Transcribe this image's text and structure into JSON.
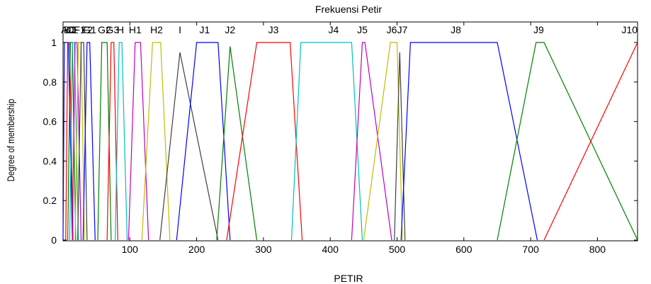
{
  "chart_data": {
    "type": "line",
    "title": "Frekuensi Petir",
    "xlabel": "PETIR",
    "ylabel": "Degree of membership",
    "xlim": [
      0,
      860
    ],
    "ylim": [
      0,
      1
    ],
    "xticks": [
      100,
      200,
      300,
      400,
      500,
      600,
      700,
      800
    ],
    "xtick_labels": [
      "100",
      "200",
      "300",
      "400",
      "500",
      "600",
      "700",
      "800"
    ],
    "yticks": [
      0,
      0.2,
      0.4,
      0.6,
      0.8,
      1
    ],
    "ytick_labels": [
      "0",
      "0.2",
      "0.4",
      "0.6",
      "0.8",
      "1"
    ],
    "grid": false,
    "series": [
      {
        "name": "A",
        "color": "#0000ff",
        "x": [
          0,
          2,
          8,
          14
        ],
        "y": [
          0,
          1,
          1,
          0
        ]
      },
      {
        "name": "B",
        "color": "#ff0000",
        "x": [
          4,
          7,
          10,
          15
        ],
        "y": [
          0,
          1,
          1,
          0
        ]
      },
      {
        "name": "C",
        "color": "#008000",
        "x": [
          7,
          11,
          14,
          19
        ],
        "y": [
          0,
          1,
          1,
          0
        ]
      },
      {
        "name": "D",
        "color": "#00bfbf",
        "x": [
          10,
          14,
          17,
          23
        ],
        "y": [
          0,
          1,
          1,
          0
        ]
      },
      {
        "name": "E",
        "color": "#bf00bf",
        "x": [
          14,
          18,
          21,
          27
        ],
        "y": [
          0,
          1,
          1,
          0
        ]
      },
      {
        "name": "F1",
        "color": "#bfbf00",
        "x": [
          18,
          23,
          27,
          32
        ],
        "y": [
          0,
          1,
          1,
          0
        ]
      },
      {
        "name": "F2",
        "color": "#404040",
        "x": [
          22,
          27,
          31,
          36
        ],
        "y": [
          0,
          1,
          1,
          0
        ]
      },
      {
        "name": "G1",
        "color": "#0000ff",
        "x": [
          30,
          36,
          40,
          48
        ],
        "y": [
          0,
          1,
          1,
          0
        ]
      },
      {
        "name": "G2",
        "color": "#008000",
        "x": [
          52,
          58,
          66,
          72
        ],
        "y": [
          0,
          1,
          1,
          0
        ]
      },
      {
        "name": "G3",
        "color": "#ff0000",
        "x": [
          66,
          72,
          76,
          82
        ],
        "y": [
          0,
          1,
          1,
          0
        ]
      },
      {
        "name": "H",
        "color": "#00bfbf",
        "x": [
          78,
          84,
          88,
          96
        ],
        "y": [
          0,
          1,
          1,
          0
        ]
      },
      {
        "name": "H1",
        "color": "#bf00bf",
        "x": [
          98,
          108,
          116,
          128
        ],
        "y": [
          0,
          1,
          1,
          0
        ]
      },
      {
        "name": "H2",
        "color": "#bfbf00",
        "x": [
          118,
          134,
          146,
          160
        ],
        "y": [
          0,
          1,
          1,
          0
        ]
      },
      {
        "name": "I",
        "color": "#404040",
        "x": [
          145,
          175,
          232
        ],
        "y": [
          0,
          0.95,
          0
        ]
      },
      {
        "name": "J1",
        "color": "#0000ff",
        "x": [
          170,
          200,
          232,
          250
        ],
        "y": [
          0,
          1,
          1,
          0
        ]
      },
      {
        "name": "J2",
        "color": "#008000",
        "x": [
          230,
          250,
          290
        ],
        "y": [
          0,
          0.98,
          0
        ]
      },
      {
        "name": "J3",
        "color": "#ff0000",
        "x": [
          245,
          290,
          340,
          358
        ],
        "y": [
          0,
          1,
          1,
          0
        ]
      },
      {
        "name": "J4",
        "color": "#00bfbf",
        "x": [
          342,
          356,
          432,
          448
        ],
        "y": [
          0,
          1,
          1,
          0
        ]
      },
      {
        "name": "J5",
        "color": "#bf00bf",
        "x": [
          432,
          448,
          452,
          492
        ],
        "y": [
          0,
          1,
          1,
          0
        ]
      },
      {
        "name": "J6",
        "color": "#bfbf00",
        "x": [
          450,
          490,
          500,
          508
        ],
        "y": [
          0,
          1,
          1,
          0
        ]
      },
      {
        "name": "J7",
        "color": "#404040",
        "x": [
          496,
          504,
          512
        ],
        "y": [
          0,
          0.95,
          0
        ]
      },
      {
        "name": "J8",
        "color": "#0000ff",
        "x": [
          506,
          520,
          650,
          710
        ],
        "y": [
          0,
          1,
          1,
          0
        ]
      },
      {
        "name": "J9",
        "color": "#008000",
        "x": [
          650,
          708,
          720,
          860
        ],
        "y": [
          0,
          1,
          1,
          0
        ]
      },
      {
        "name": "J10",
        "color": "#ff0000",
        "x": [
          720,
          860
        ],
        "y": [
          0,
          1
        ]
      }
    ],
    "mf_labels": [
      {
        "text": "A",
        "x": 2
      },
      {
        "text": "B",
        "x": 6
      },
      {
        "text": "C",
        "x": 10
      },
      {
        "text": "D",
        "x": 14
      },
      {
        "text": "E",
        "x": 18
      },
      {
        "text": "F1",
        "x": 25
      },
      {
        "text": "F2",
        "x": 36
      },
      {
        "text": "G1",
        "x": 40
      },
      {
        "text": "G2",
        "x": 62
      },
      {
        "text": "G3",
        "x": 74
      },
      {
        "text": "H",
        "x": 86
      },
      {
        "text": "H1",
        "x": 108
      },
      {
        "text": "H2",
        "x": 140
      },
      {
        "text": "I",
        "x": 175
      },
      {
        "text": "J1",
        "x": 212
      },
      {
        "text": "J2",
        "x": 250
      },
      {
        "text": "J3",
        "x": 315
      },
      {
        "text": "J4",
        "x": 405
      },
      {
        "text": "J5",
        "x": 448
      },
      {
        "text": "J6",
        "x": 492
      },
      {
        "text": "J7",
        "x": 508
      },
      {
        "text": "J8",
        "x": 588
      },
      {
        "text": "J9",
        "x": 712
      },
      {
        "text": "J10",
        "x": 860
      }
    ]
  }
}
